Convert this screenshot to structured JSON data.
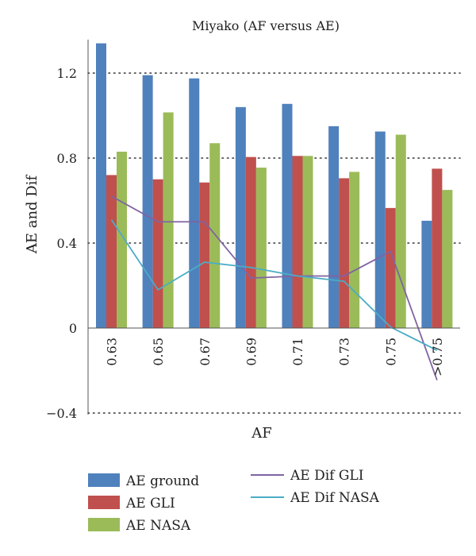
{
  "chart_data": {
    "type": "bar",
    "title": "Miyako (AF versus AE)",
    "xlabel": "AF",
    "ylabel": "AE and Dif",
    "categories": [
      "0.63",
      "0.65",
      "0.67",
      "0.69",
      "0.71",
      "0.73",
      "0.75",
      ">0.75"
    ],
    "ylim": [
      -0.4,
      1.35
    ],
    "yticks": [
      -0.4,
      0,
      0.4,
      0.8,
      1.2
    ],
    "ytick_labels": [
      "−0.4",
      "0",
      "0.4",
      "0.8",
      "1.2"
    ],
    "grid": "dotted horizontal",
    "legend_position": "bottom",
    "series": [
      {
        "name": "AE ground",
        "kind": "bar",
        "color": "#4F81BD",
        "values": [
          1.34,
          1.19,
          1.175,
          1.04,
          1.055,
          0.95,
          0.925,
          0.505
        ]
      },
      {
        "name": "AE GLI",
        "kind": "bar",
        "color": "#C0504D",
        "values": [
          0.72,
          0.7,
          0.685,
          0.805,
          0.81,
          0.705,
          0.565,
          0.75
        ]
      },
      {
        "name": "AE NASA",
        "kind": "bar",
        "color": "#9BBB59",
        "values": [
          0.83,
          1.015,
          0.87,
          0.755,
          0.81,
          0.735,
          0.91,
          0.65
        ]
      },
      {
        "name": "AE Dif GLI",
        "kind": "line",
        "color": "#8064A2",
        "values": [
          0.62,
          0.5,
          0.5,
          0.235,
          0.245,
          0.245,
          0.36,
          -0.245
        ]
      },
      {
        "name": "AE Dif NASA",
        "kind": "line",
        "color": "#4BACC6",
        "values": [
          0.51,
          0.18,
          0.31,
          0.285,
          0.245,
          0.22,
          0.005,
          -0.105
        ]
      }
    ]
  }
}
